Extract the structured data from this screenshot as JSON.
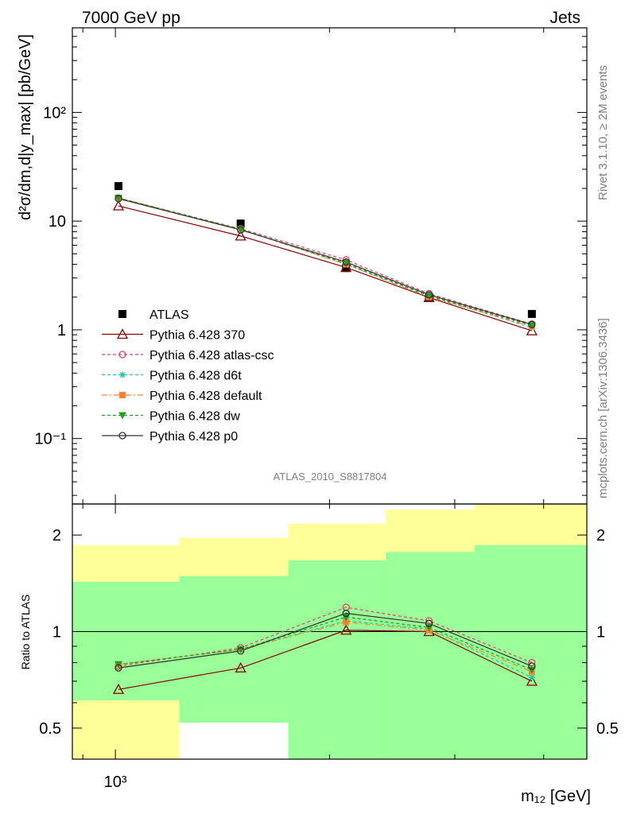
{
  "header": {
    "left": "7000 GeV pp",
    "right": "Jets"
  },
  "side_labels": {
    "top": "Rivet 3.1.10, ≥ 2M events",
    "bottom": "mcplots.cern.ch [arXiv:1306.3436]"
  },
  "analysis_label": "ATLAS_2010_S8817804",
  "chart_data": [
    {
      "type": "line",
      "panel": "main",
      "ylabel": "d²σ/dm,d|y_max| [pb/GeV]",
      "yscale": "log",
      "xscale": "log",
      "ylim": [
        0.025,
        600
      ],
      "y_ticks": [
        "10⁻¹",
        "1",
        "10",
        "10²"
      ],
      "x": [
        1010,
        1500,
        2110,
        2760,
        3850
      ],
      "series": [
        {
          "name": "ATLAS",
          "color": "#000000",
          "marker": "square",
          "line": "none",
          "values": [
            21.0,
            9.5,
            3.7,
            2.0,
            1.4
          ]
        },
        {
          "name": "Pythia 6.428 370",
          "color": "#8b0000",
          "marker": "triangle-open",
          "line": "solid",
          "values": [
            13.8,
            7.3,
            3.75,
            1.98,
            0.98
          ]
        },
        {
          "name": "Pythia 6.428 atlas-csc",
          "color": "#e8406a",
          "marker": "circle-open",
          "line": "dashed",
          "values": [
            16.3,
            8.5,
            4.4,
            2.15,
            1.13
          ]
        },
        {
          "name": "Pythia 6.428 d6t",
          "color": "#1fc99a",
          "marker": "asterisk",
          "line": "dashed",
          "values": [
            16.4,
            8.4,
            4.0,
            2.05,
            1.05
          ]
        },
        {
          "name": "Pythia 6.428 default",
          "color": "#ff8030",
          "marker": "square-filled",
          "line": "dashdot",
          "values": [
            16.4,
            8.4,
            4.0,
            2.0,
            1.08
          ]
        },
        {
          "name": "Pythia 6.428 dw",
          "color": "#20a020",
          "marker": "triangle-down",
          "line": "dashed",
          "values": [
            16.3,
            8.4,
            4.1,
            2.05,
            1.1
          ]
        },
        {
          "name": "Pythia 6.428 p0",
          "color": "#303030",
          "marker": "circle-open",
          "line": "solid",
          "values": [
            16.1,
            8.3,
            4.2,
            2.1,
            1.12
          ]
        }
      ]
    },
    {
      "type": "line",
      "panel": "ratio",
      "ylabel": "Ratio to ATLAS",
      "xlabel": "m₁₂ [GeV]",
      "yscale": "log",
      "xscale": "log",
      "xlim": [
        870,
        4600
      ],
      "ylim": [
        0.4,
        2.5
      ],
      "y_ticks": [
        "0.5",
        "1",
        "2"
      ],
      "x_ticks": [
        "10³"
      ],
      "x": [
        1010,
        1500,
        2110,
        2760,
        3850
      ],
      "bins": [
        [
          870,
          1230
        ],
        [
          1230,
          1750
        ],
        [
          1750,
          2400
        ],
        [
          2400,
          3200
        ],
        [
          3200,
          4600
        ]
      ],
      "band_outer": [
        [
          0.35,
          1.86
        ],
        [
          0.52,
          1.96
        ],
        [
          0.35,
          2.17
        ],
        [
          0.35,
          2.4
        ],
        [
          0.35,
          2.5
        ]
      ],
      "band_inner": [
        [
          0.61,
          1.43
        ],
        [
          0.52,
          1.49
        ],
        [
          0.35,
          1.67
        ],
        [
          0.35,
          1.77
        ],
        [
          0.35,
          1.86
        ]
      ],
      "band_outer_color": "#ffff99",
      "band_inner_color": "#99ff99",
      "series": [
        {
          "name": "Pythia 6.428 370",
          "color": "#8b0000",
          "marker": "triangle-open",
          "line": "solid",
          "values": [
            0.66,
            0.77,
            1.01,
            1.0,
            0.7
          ]
        },
        {
          "name": "Pythia 6.428 atlas-csc",
          "color": "#e8406a",
          "marker": "circle-open",
          "line": "dashed",
          "values": [
            0.78,
            0.89,
            1.19,
            1.08,
            0.8
          ]
        },
        {
          "name": "Pythia 6.428 d6t",
          "color": "#1fc99a",
          "marker": "asterisk",
          "line": "dashed",
          "values": [
            0.79,
            0.88,
            1.08,
            1.02,
            0.72
          ]
        },
        {
          "name": "Pythia 6.428 default",
          "color": "#ff8030",
          "marker": "square-filled",
          "line": "dashdot",
          "values": [
            0.79,
            0.88,
            1.07,
            1.01,
            0.75
          ]
        },
        {
          "name": "Pythia 6.428 dw",
          "color": "#20a020",
          "marker": "triangle-down",
          "line": "dashed",
          "values": [
            0.79,
            0.88,
            1.11,
            1.03,
            0.76
          ]
        },
        {
          "name": "Pythia 6.428 p0",
          "color": "#303030",
          "marker": "circle-open",
          "line": "solid",
          "values": [
            0.77,
            0.87,
            1.14,
            1.06,
            0.78
          ]
        }
      ]
    }
  ]
}
